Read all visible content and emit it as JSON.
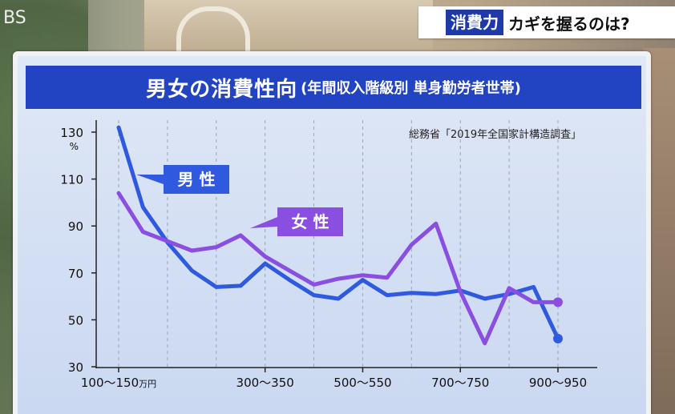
{
  "logo": "BS",
  "caption": {
    "tag": "消費力",
    "text": "カギを握るのは?"
  },
  "chart_data": {
    "type": "line",
    "title": "男女の消費性向",
    "subtitle": "(年間収入階級別 単身勤労者世帯)",
    "source": "総務省「2019年全国家計構造調査」",
    "ylabel": "%",
    "ylim": [
      30,
      130
    ],
    "yticks": [
      30,
      50,
      70,
      90,
      110,
      130
    ],
    "xtick_labels": [
      {
        "index": 0,
        "text": "100〜150",
        "unit": "万円"
      },
      {
        "index": 3,
        "text": "300〜350",
        "unit": ""
      },
      {
        "index": 5,
        "text": "500〜550",
        "unit": ""
      },
      {
        "index": 7,
        "text": "700〜750",
        "unit": ""
      },
      {
        "index": 9,
        "text": "900〜950",
        "unit": ""
      }
    ],
    "series": [
      {
        "name": "男 性",
        "color": "#2f5ae0",
        "x": [
          0,
          0.5,
          1,
          1.5,
          2,
          2.5,
          3,
          3.5,
          4,
          4.5,
          5,
          5.5,
          6,
          6.5,
          7,
          7.5,
          8,
          8.5,
          9
        ],
        "values": [
          132,
          98,
          83,
          71,
          64,
          64.5,
          74,
          67,
          60.5,
          59,
          67,
          60.5,
          61.5,
          61,
          62.5,
          59,
          61,
          64,
          42
        ]
      },
      {
        "name": "女 性",
        "color": "#8a4fe0",
        "x": [
          0,
          0.5,
          1,
          1.5,
          2,
          2.5,
          3,
          3.5,
          4,
          4.5,
          5,
          5.5,
          6,
          6.5,
          7,
          7.5,
          8,
          8.5,
          9
        ],
        "values": [
          104,
          87.5,
          83.5,
          79.5,
          81,
          86,
          77,
          71,
          65,
          67.5,
          69,
          68,
          82,
          91,
          62,
          40,
          63.5,
          57.5,
          57.5
        ]
      }
    ],
    "grid": "vertical-dashed",
    "legend": "inline-callouts"
  }
}
